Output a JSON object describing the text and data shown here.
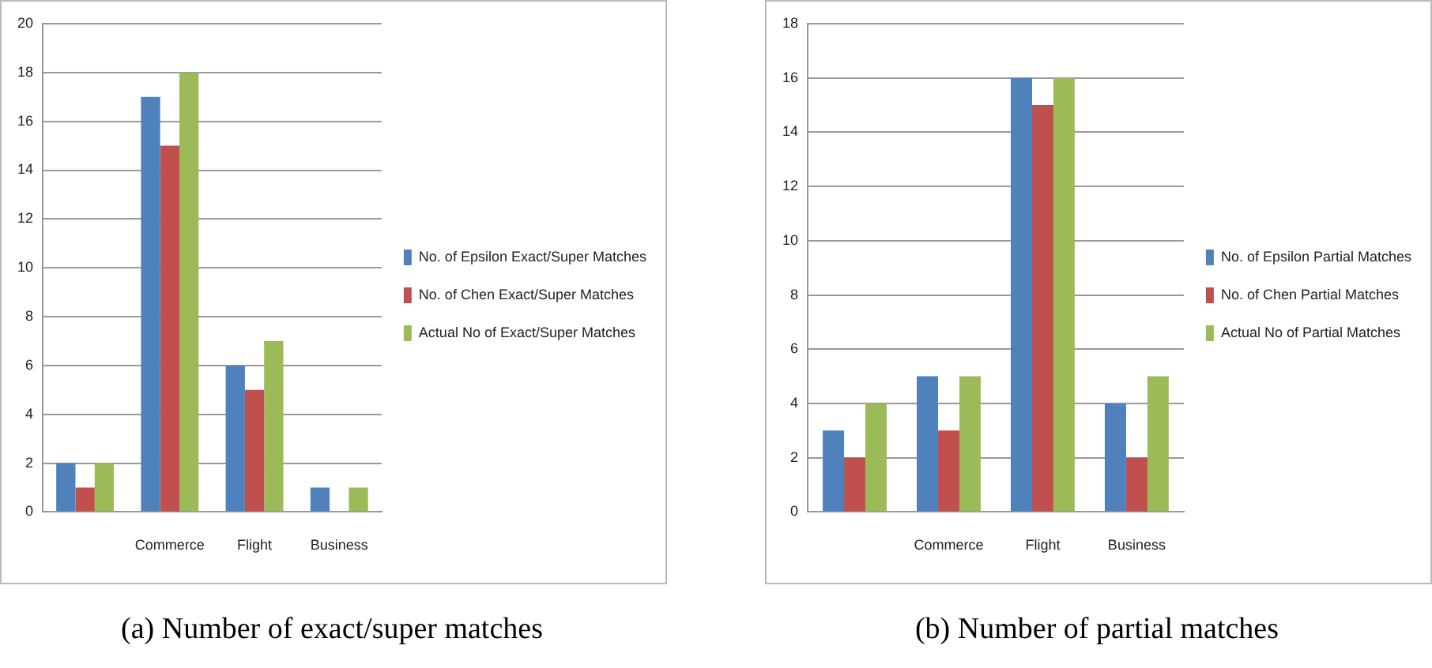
{
  "chart_data": [
    {
      "type": "bar",
      "title": "(a) Number of exact/super matches",
      "categories": [
        null,
        "Commerce",
        "Flight",
        "Business"
      ],
      "series": [
        {
          "name": "No. of Epsilon Exact/Super Matches",
          "color": "#4f81bd",
          "values": [
            2,
            17,
            6,
            1
          ]
        },
        {
          "name": "No. of Chen Exact/Super Matches",
          "color": "#c0504d",
          "values": [
            1,
            15,
            5,
            0
          ]
        },
        {
          "name": "Actual No of Exact/Super Matches",
          "color": "#9bbb59",
          "values": [
            2,
            18,
            7,
            1
          ]
        }
      ],
      "ylim": [
        0,
        20
      ],
      "yticks": [
        0,
        2,
        4,
        6,
        8,
        10,
        12,
        14,
        16,
        18,
        20
      ],
      "grid": "y",
      "legend": "right"
    },
    {
      "type": "bar",
      "title": "(b) Number of partial matches",
      "categories": [
        null,
        "Commerce",
        "Flight",
        "Business"
      ],
      "series": [
        {
          "name": "No. of Epsilon Partial Matches",
          "color": "#4f81bd",
          "values": [
            3,
            5,
            16,
            4
          ]
        },
        {
          "name": "No. of Chen Partial Matches",
          "color": "#c0504d",
          "values": [
            2,
            3,
            15,
            2
          ]
        },
        {
          "name": "Actual No of Partial Matches",
          "color": "#9bbb59",
          "values": [
            4,
            5,
            16,
            5
          ]
        }
      ],
      "ylim": [
        0,
        18
      ],
      "yticks": [
        0,
        2,
        4,
        6,
        8,
        10,
        12,
        14,
        16,
        18
      ],
      "grid": "y",
      "legend": "right"
    }
  ]
}
